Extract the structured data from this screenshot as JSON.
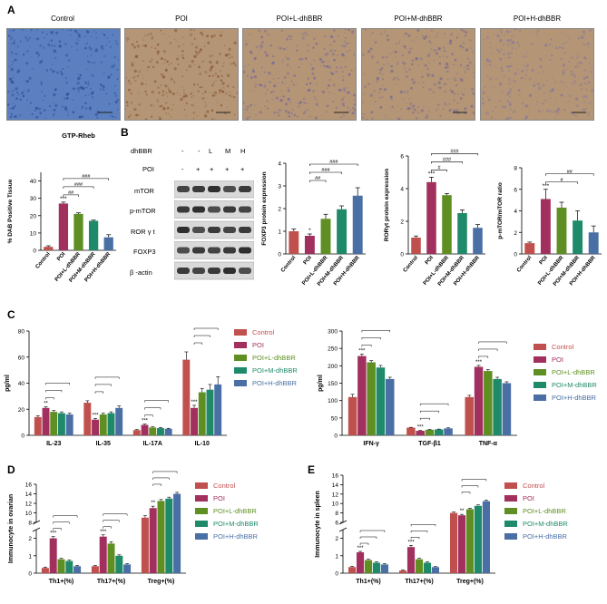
{
  "colors": {
    "control": "#c0504d",
    "poi": "#a2305f",
    "low": "#5f8f22",
    "mid": "#1f8a6a",
    "high": "#4a6fa5",
    "ihc_control": "#5b7fbf",
    "ihc_treated": "#b49575"
  },
  "panelA": {
    "letter": "A",
    "labels": [
      "Control",
      "POI",
      "POI+L-dhBBR",
      "POI+M-dhBBR",
      "POI+H-dhBBR"
    ]
  },
  "panelB": {
    "letter": "B",
    "dhbbr_label": "dhBBR",
    "poi_label": "POI",
    "dhbbr_values": [
      "-",
      "-",
      "L",
      "M",
      "H"
    ],
    "poi_values": [
      "-",
      "+",
      "+",
      "+",
      "+"
    ],
    "rows": [
      "mTOR",
      "p-mTOR",
      "ROR γ t",
      "FOXP3",
      "β -actin"
    ]
  },
  "panelC": {
    "letter": "C"
  },
  "panelD": {
    "letter": "D"
  },
  "panelE": {
    "letter": "E"
  },
  "chart_data": [
    {
      "id": "gtp",
      "type": "bar",
      "title": "GTP-Rheb",
      "ylabel": "% DAB Positive Tissue",
      "categories": [
        "Control",
        "POI",
        "POI+L-dhBBR",
        "POI+M-dhBBR",
        "POI+H-dhBBR"
      ],
      "values": [
        2,
        27,
        21,
        17,
        7.5
      ],
      "errors": [
        0.6,
        0.8,
        0.6,
        0.4,
        1.5
      ],
      "ylim": [
        0,
        45
      ],
      "yticks": [
        0,
        10,
        20,
        30,
        40
      ],
      "stars": [
        "",
        "***",
        "",
        "",
        ""
      ],
      "brackets": [
        "##",
        "###",
        "###"
      ]
    },
    {
      "id": "foxp3",
      "type": "bar",
      "ylabel": "FOXP3 protein expression",
      "categories": [
        "Control",
        "POI",
        "POI+L-dhBBR",
        "POI+M-dhBBR",
        "POI+H-dhBBR"
      ],
      "values": [
        1.0,
        0.8,
        1.55,
        1.97,
        2.57
      ],
      "errors": [
        0.1,
        0.08,
        0.2,
        0.15,
        0.35
      ],
      "ylim": [
        0,
        4
      ],
      "yticks": [
        0,
        1,
        2,
        3,
        4
      ],
      "stars": [
        "",
        "*",
        "",
        "",
        ""
      ],
      "brackets": [
        "##",
        "###",
        "###"
      ]
    },
    {
      "id": "rorgt",
      "type": "bar",
      "ylabel": "RORγt protein expression",
      "categories": [
        "Control",
        "POI",
        "POI+L-dhBBR",
        "POI+M-dhBBR",
        "POI+H-dhBBR"
      ],
      "values": [
        1.0,
        4.4,
        3.6,
        2.5,
        1.6
      ],
      "errors": [
        0.1,
        0.3,
        0.1,
        0.2,
        0.2
      ],
      "ylim": [
        0,
        6
      ],
      "yticks": [
        0,
        2,
        4,
        6
      ],
      "stars": [
        "",
        "***",
        "",
        "",
        ""
      ],
      "brackets": [
        "#",
        "###",
        "###"
      ]
    },
    {
      "id": "pmtor",
      "type": "bar",
      "ylabel": "p-mTOR/mTOR ratio",
      "categories": [
        "Control",
        "POI",
        "POI+L-dhBBR",
        "POI+M-dhBBR",
        "POI+H-dhBBR"
      ],
      "values": [
        1.0,
        5.1,
        4.3,
        3.1,
        2.0
      ],
      "errors": [
        0.1,
        0.9,
        0.5,
        0.9,
        0.6
      ],
      "ylim": [
        0,
        8
      ],
      "yticks": [
        0,
        2,
        4,
        6,
        8
      ],
      "stars": [
        "",
        "***",
        "",
        "",
        ""
      ],
      "brackets": [
        "#",
        "##"
      ]
    },
    {
      "id": "cyto1",
      "type": "bar",
      "ylabel": "pg/ml",
      "categories": [
        "IL-23",
        "IL-35",
        "IL-17A",
        "IL-10"
      ],
      "series": [
        {
          "name": "Control",
          "values": [
            14,
            25,
            4,
            58
          ],
          "errors": [
            1,
            1.5,
            0.5,
            6
          ]
        },
        {
          "name": "POI",
          "values": [
            21,
            12,
            8,
            21
          ],
          "errors": [
            1,
            1,
            0.6,
            2
          ]
        },
        {
          "name": "POI+L-dhBBR",
          "values": [
            18,
            16,
            6,
            33
          ],
          "errors": [
            1,
            1,
            0.5,
            3
          ]
        },
        {
          "name": "POI+M-dhBBR",
          "values": [
            17,
            17,
            5.5,
            35
          ],
          "errors": [
            1,
            1,
            0.5,
            4
          ]
        },
        {
          "name": "POI+H-dhBBR",
          "values": [
            16,
            21,
            5,
            39
          ],
          "errors": [
            1,
            1.5,
            0.4,
            6
          ]
        }
      ],
      "ylim": [
        0,
        80
      ],
      "yticks": [
        0,
        20,
        40,
        60,
        80
      ],
      "stars": [
        "**",
        "***",
        "***",
        "***"
      ]
    },
    {
      "id": "cyto2",
      "type": "bar",
      "ylabel": "pg/ml",
      "categories": [
        "IFN-γ",
        "TGF-β1",
        "TNF-α"
      ],
      "series": [
        {
          "name": "Control",
          "values": [
            110,
            22,
            110
          ],
          "errors": [
            8,
            1,
            5
          ]
        },
        {
          "name": "POI",
          "values": [
            228,
            13,
            197
          ],
          "errors": [
            6,
            1,
            4
          ]
        },
        {
          "name": "POI+L-dhBBR",
          "values": [
            210,
            16,
            185
          ],
          "errors": [
            5,
            1,
            4
          ]
        },
        {
          "name": "POI+M-dhBBR",
          "values": [
            195,
            17,
            162
          ],
          "errors": [
            6,
            1,
            5
          ]
        },
        {
          "name": "POI+H-dhBBR",
          "values": [
            162,
            20,
            150
          ],
          "errors": [
            5,
            1.5,
            4
          ]
        }
      ],
      "ylim": [
        0,
        300
      ],
      "yticks": [
        0,
        50,
        100,
        150,
        200,
        250,
        300
      ],
      "stars": [
        "***",
        "***",
        "***"
      ]
    },
    {
      "id": "ovary",
      "type": "bar",
      "ylabel": "Immunocyte in ovarian",
      "categories": [
        "Th1+(%)",
        "Th17+(%)",
        "Treg+(%)"
      ],
      "series": [
        {
          "name": "Control",
          "values": [
            0.3,
            0.4,
            9
          ],
          "errors": [
            0.05,
            0.05,
            0.4
          ]
        },
        {
          "name": "POI",
          "values": [
            2.0,
            2.1,
            11
          ],
          "errors": [
            0.1,
            0.1,
            0.4
          ]
        },
        {
          "name": "POI+L-dhBBR",
          "values": [
            0.8,
            1.7,
            12.5
          ],
          "errors": [
            0.05,
            0.1,
            0.3
          ]
        },
        {
          "name": "POI+M-dhBBR",
          "values": [
            0.7,
            1.0,
            13
          ],
          "errors": [
            0.05,
            0.05,
            0.3
          ]
        },
        {
          "name": "POI+H-dhBBR",
          "values": [
            0.4,
            0.5,
            14
          ],
          "errors": [
            0.05,
            0.05,
            0.3
          ]
        }
      ],
      "yticks_low": [
        0,
        1,
        2
      ],
      "yticks_high": [
        8,
        10,
        12,
        14,
        16
      ],
      "stars": [
        "***",
        "***",
        "**"
      ]
    },
    {
      "id": "spleen",
      "type": "bar",
      "ylabel": "Immunocyte in spleen",
      "categories": [
        "Th1+(%)",
        "Th17+(%)",
        "Treg+(%)"
      ],
      "series": [
        {
          "name": "Control",
          "values": [
            0.35,
            0.15,
            8
          ],
          "errors": [
            0.05,
            0.03,
            0.2
          ]
        },
        {
          "name": "POI",
          "values": [
            1.2,
            1.5,
            7.5
          ],
          "errors": [
            0.05,
            0.1,
            0.2
          ]
        },
        {
          "name": "POI+L-dhBBR",
          "values": [
            0.75,
            0.8,
            8.8
          ],
          "errors": [
            0.05,
            0.05,
            0.2
          ]
        },
        {
          "name": "POI+M-dhBBR",
          "values": [
            0.6,
            0.6,
            9.5
          ],
          "errors": [
            0.05,
            0.05,
            0.2
          ]
        },
        {
          "name": "POI+H-dhBBR",
          "values": [
            0.5,
            0.35,
            10.5
          ],
          "errors": [
            0.05,
            0.03,
            0.2
          ]
        }
      ],
      "yticks_low": [
        0,
        1,
        2
      ],
      "yticks_high": [
        6,
        8,
        10,
        12,
        14,
        16
      ],
      "stars": [
        "***",
        "***",
        "**"
      ]
    }
  ]
}
